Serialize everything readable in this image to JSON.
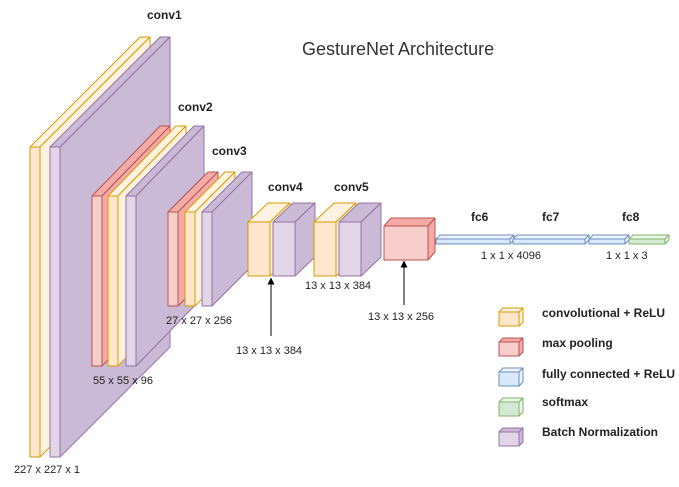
{
  "title": "GestureNet Architecture",
  "colors": {
    "conv": {
      "front": "#ffe6cc",
      "side": "#fff2e0",
      "stroke": "#d79b00"
    },
    "pool": {
      "front": "#f8cecc",
      "side": "#f4aaa6",
      "stroke": "#b85450"
    },
    "fc": {
      "front": "#dae8fc",
      "side": "#eef4fd",
      "stroke": "#6c8ebf"
    },
    "softmax": {
      "front": "#d5e8d4",
      "side": "#eaf4e9",
      "stroke": "#82b366"
    },
    "bn": {
      "front": "#e1d5e7",
      "side": "#cbbad6",
      "stroke": "#9673a6"
    }
  },
  "layers": {
    "conv1": "conv1",
    "conv2": "conv2",
    "conv3": "conv3",
    "conv4": "conv4",
    "conv5": "conv5",
    "fc6": "fc6",
    "fc7": "fc7",
    "fc8": "fc8"
  },
  "dims": {
    "input": "227 x 227 x 1",
    "conv1_out": "55 x 55 x 96",
    "conv2_out": "27 x 27 x 256",
    "conv3_out": "13 x 13 x 384",
    "conv4_out": "13 x 13 x 384",
    "pool5_out": "13 x 13 x 256",
    "fc67": "1 x 1 x 4096",
    "fc8": "1 x 1 x 3"
  },
  "legend": [
    {
      "key": "conv",
      "label": "convolutional + ReLU"
    },
    {
      "key": "pool",
      "label": "max pooling"
    },
    {
      "key": "fc",
      "label": "fully connected + ReLU"
    },
    {
      "key": "softmax",
      "label": "softmax"
    },
    {
      "key": "bn",
      "label": "Batch Normalization"
    }
  ]
}
